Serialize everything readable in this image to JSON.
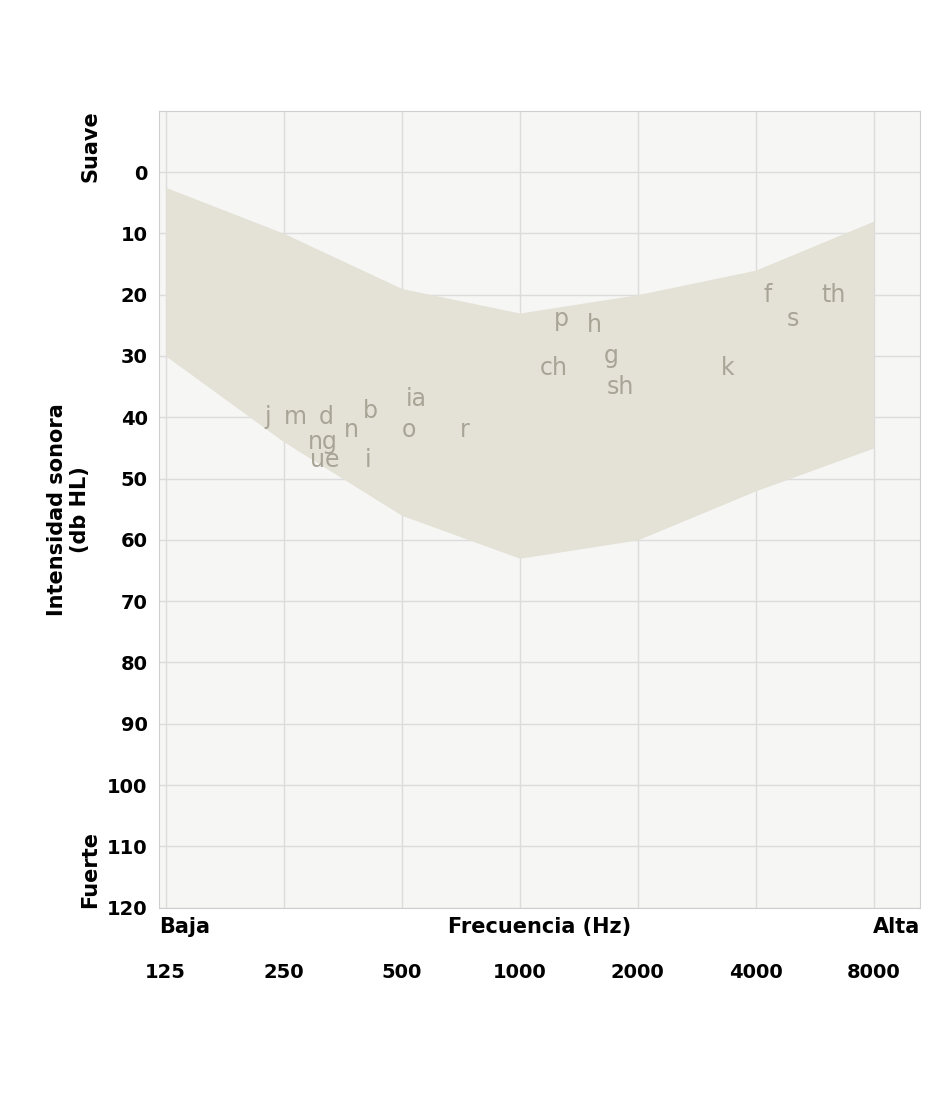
{
  "chart_data": {
    "type": "area",
    "xlabel": "Frecuencia (Hz)",
    "ylabel": "Intensidad sonora\n(db HL)",
    "x_low_label": "Baja",
    "x_high_label": "Alta",
    "y_top_label": "Suave",
    "y_bottom_label": "Fuerte",
    "log": "x",
    "grid": true,
    "xlim": [
      120,
      10500
    ],
    "xticks": [
      125,
      250,
      500,
      1000,
      2000,
      4000,
      8000
    ],
    "ylim": [
      120,
      -10
    ],
    "yticks": [
      0,
      10,
      20,
      30,
      40,
      50,
      60,
      70,
      80,
      90,
      100,
      110,
      120
    ],
    "band": {
      "x": [
        125,
        250,
        500,
        1000,
        2000,
        4000,
        8000
      ],
      "low": [
        2.5,
        10,
        19,
        23,
        20,
        16,
        8
      ],
      "high": [
        30,
        44,
        56,
        63,
        60,
        52,
        45
      ],
      "color": "#e4e1d6"
    },
    "annotations": [
      {
        "text": "j",
        "x": 227,
        "y": 40
      },
      {
        "text": "m",
        "x": 268,
        "y": 40
      },
      {
        "text": "d",
        "x": 320,
        "y": 40
      },
      {
        "text": "ng",
        "x": 315,
        "y": 44
      },
      {
        "text": "n",
        "x": 371,
        "y": 42
      },
      {
        "text": "b",
        "x": 417,
        "y": 39
      },
      {
        "text": "ue",
        "x": 318,
        "y": 47
      },
      {
        "text": "i",
        "x": 410,
        "y": 47
      },
      {
        "text": "ia",
        "x": 543,
        "y": 37
      },
      {
        "text": "o",
        "x": 521,
        "y": 42
      },
      {
        "text": "r",
        "x": 722,
        "y": 42
      },
      {
        "text": "p",
        "x": 1275,
        "y": 24
      },
      {
        "text": "h",
        "x": 1550,
        "y": 25
      },
      {
        "text": "ch",
        "x": 1220,
        "y": 32
      },
      {
        "text": "g",
        "x": 1710,
        "y": 30
      },
      {
        "text": "sh",
        "x": 1810,
        "y": 35
      },
      {
        "text": "k",
        "x": 3400,
        "y": 32
      },
      {
        "text": "f",
        "x": 4300,
        "y": 20
      },
      {
        "text": "s",
        "x": 4970,
        "y": 24
      },
      {
        "text": "th",
        "x": 6330,
        "y": 20
      }
    ],
    "annotation_color": "#a8a597"
  }
}
